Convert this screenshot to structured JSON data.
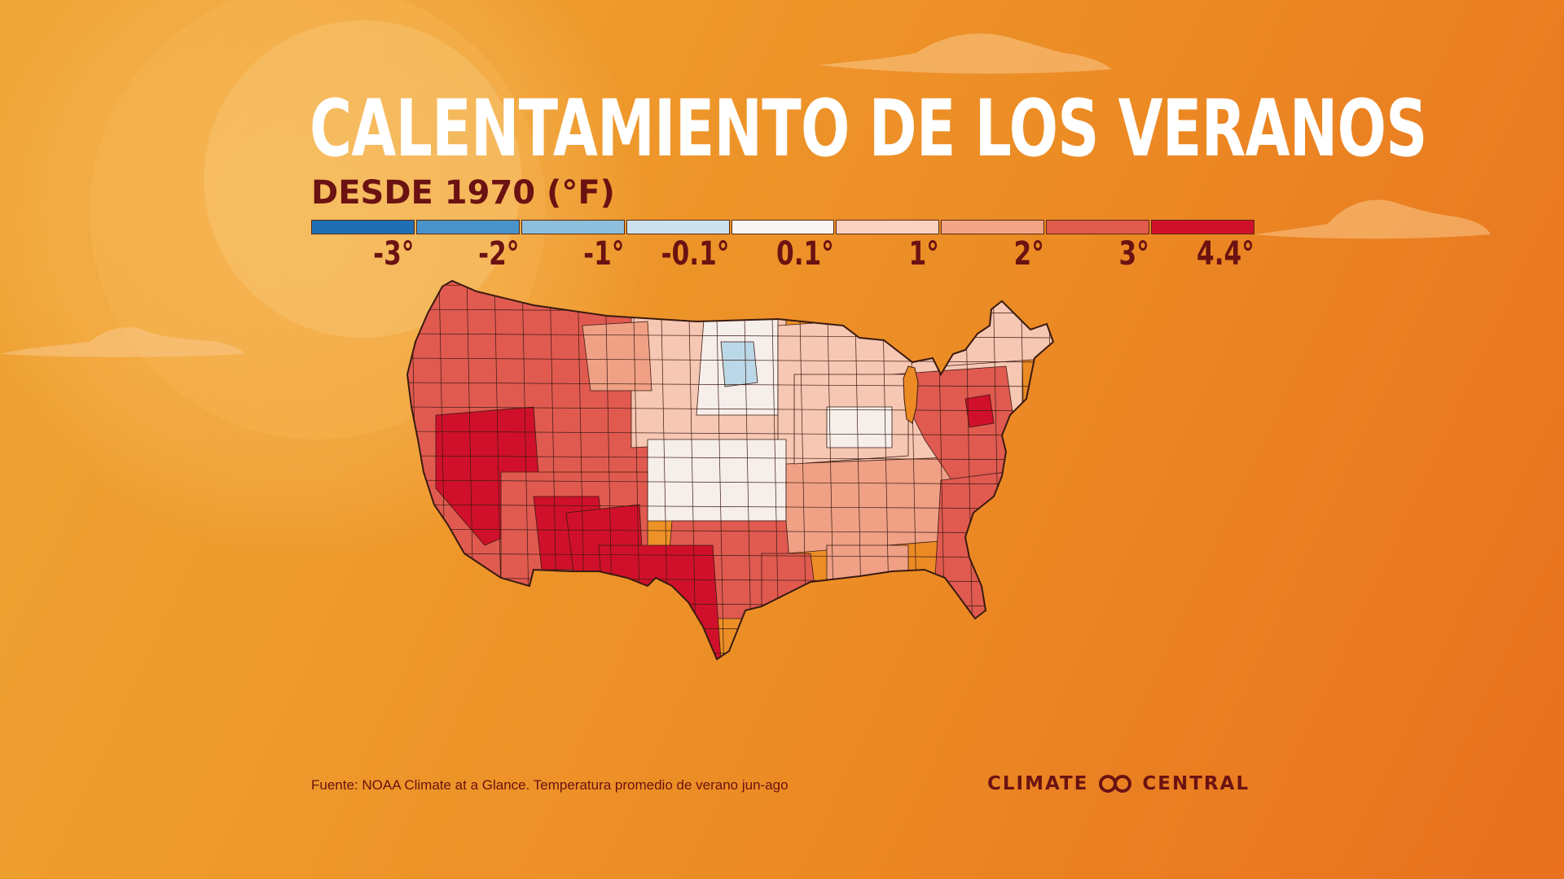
{
  "title": "CALENTAMIENTO DE LOS VERANOS",
  "subtitle": "DESDE 1970 (°F)",
  "legend": {
    "colors": [
      "#1F6FB5",
      "#4893CA",
      "#8DBEDB",
      "#CCE1EE",
      "#F8F6F4",
      "#F8D1C1",
      "#F2A587",
      "#E05B4B",
      "#D0102A"
    ],
    "labels": [
      "-3°",
      "-2°",
      "-1°",
      "-0.1°",
      "0.1°",
      "1°",
      "2°",
      "3°",
      "4.4°"
    ]
  },
  "map": {
    "colors": {
      "cool_blue": "#BBD8E8",
      "neutral": "#F6EEEA",
      "light": "#F6C7B3",
      "medium": "#EFA085",
      "warm": "#E05A50",
      "hot": "#D0102A",
      "outline": "#3a1a10"
    }
  },
  "source": "Fuente: NOAA Climate at a Glance. Temperatura promedio de verano jun-ago",
  "brand": {
    "left": "CLIMATE",
    "right": "CENTRAL",
    "icon": "climate-central-logo-icon"
  }
}
